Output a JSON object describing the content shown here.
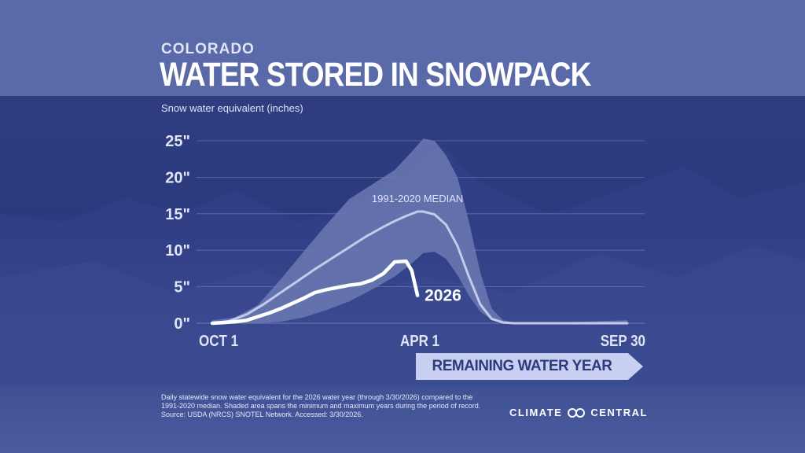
{
  "header": {
    "subtitle": "COLORADO",
    "title": "WATER STORED IN SNOWPACK"
  },
  "axis_title": "Snow water equivalent (inches)",
  "remaining_label": "REMAINING WATER YEAR",
  "footnote": {
    "line1": "Daily statewide snow water equivalent for the 2026 water year (through 3/30/2026) compared to the",
    "line2": "1991-2020 median. Shaded area spans the minimum and maximum years during the period of record.",
    "line3": "Source: USDA (NRCS) SNOTEL Network. Accessed: 3/30/2026."
  },
  "logo": {
    "left": "CLIMATE",
    "right": "CENTRAL",
    "icon": "infinity-icon"
  },
  "colors": {
    "background_top": "#5a6aa9",
    "background_main": "#2c3a7e",
    "range_fill": "#6b79b3",
    "median_line": "#c3caeb",
    "current_line": "#ffffff",
    "arrow_fill": "#c8cff0"
  },
  "chart_data": {
    "type": "area",
    "title": "WATER STORED IN SNOWPACK",
    "ylabel": "Snow water equivalent (inches)",
    "xlabel": "",
    "ylim": [
      0,
      25
    ],
    "yticks": [
      0,
      5,
      10,
      15,
      20,
      25
    ],
    "ytick_labels": [
      "0\"",
      "5\"",
      "10\"",
      "15\"",
      "20\"",
      "25\""
    ],
    "xlim": [
      0,
      364
    ],
    "xticks": [
      0,
      182,
      364
    ],
    "xtick_labels": [
      "OCT 1",
      "APR 1",
      "SEP 30"
    ],
    "grid": true,
    "series": [
      {
        "name": "1991-2020 MEDIAN",
        "style": "line",
        "x": [
          0,
          15,
          30,
          45,
          60,
          75,
          90,
          105,
          120,
          135,
          150,
          160,
          170,
          180,
          185,
          195,
          205,
          215,
          225,
          235,
          245,
          255,
          265,
          364
        ],
        "y": [
          0,
          0.3,
          1.2,
          2.6,
          4.2,
          5.8,
          7.4,
          8.9,
          10.4,
          11.9,
          13.2,
          14.0,
          14.7,
          15.3,
          15.3,
          14.9,
          13.5,
          10.6,
          6.4,
          2.6,
          0.6,
          0.1,
          0,
          0
        ]
      },
      {
        "name": "minimum-maximum range",
        "style": "band",
        "x": [
          0,
          20,
          40,
          60,
          80,
          100,
          120,
          140,
          160,
          175,
          185,
          195,
          205,
          215,
          225,
          235,
          245,
          255,
          265,
          300,
          364
        ],
        "y_min": [
          0,
          0,
          0,
          0.2,
          0.8,
          1.8,
          3.0,
          4.6,
          6.4,
          8.2,
          9.6,
          9.8,
          8.8,
          6.6,
          3.8,
          1.6,
          0.5,
          0.1,
          0,
          0,
          0
        ],
        "y_max": [
          0.4,
          0.8,
          2.5,
          6.0,
          9.8,
          13.5,
          17.0,
          19.0,
          21.0,
          23.5,
          25.3,
          25.0,
          23.0,
          20.0,
          14.0,
          7.0,
          2.0,
          0.4,
          0.1,
          0.1,
          0.4
        ]
      },
      {
        "name": "2026",
        "style": "line",
        "x": [
          0,
          10,
          20,
          30,
          40,
          50,
          60,
          70,
          80,
          90,
          100,
          110,
          120,
          130,
          140,
          150,
          160,
          170,
          175,
          180
        ],
        "y": [
          0,
          0.1,
          0.2,
          0.4,
          0.9,
          1.4,
          2.0,
          2.7,
          3.4,
          4.2,
          4.6,
          4.9,
          5.2,
          5.4,
          5.9,
          6.8,
          8.4,
          8.5,
          7.2,
          3.8
        ]
      }
    ],
    "annotations": [
      "1991-2020 MEDIAN",
      "2026"
    ]
  }
}
